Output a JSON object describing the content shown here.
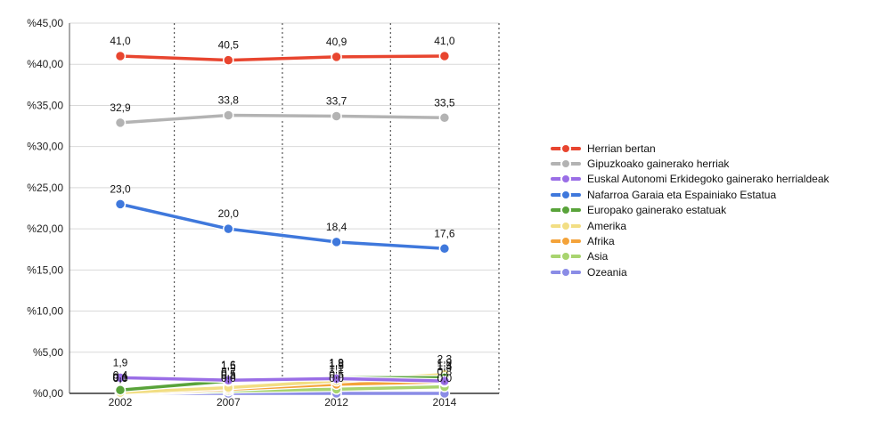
{
  "chart_data": {
    "type": "line",
    "x": [
      "2002",
      "2007",
      "2012",
      "2014"
    ],
    "yticks": [
      "%0,00",
      "%5,00",
      "%10,00",
      "%15,00",
      "%20,00",
      "%25,00",
      "%30,00",
      "%35,00",
      "%40,00",
      "%45,00"
    ],
    "ylim": [
      0,
      45
    ],
    "grid": true,
    "legend_position": "right",
    "series": [
      {
        "name": "Herrian bertan",
        "color": "#e8452f",
        "values": [
          41.0,
          40.5,
          40.9,
          41.0
        ],
        "labels": [
          "41,0",
          "40,5",
          "40,9",
          "41,0"
        ]
      },
      {
        "name": "Gipuzkoako gainerako herriak",
        "color": "#b3b3b3",
        "values": [
          32.9,
          33.8,
          33.7,
          33.5
        ],
        "labels": [
          "32,9",
          "33,8",
          "33,7",
          "33,5"
        ]
      },
      {
        "name": "Euskal Autonomi Erkidegoko gainerako herrialdeak",
        "color": "#9a6ee6",
        "values": [
          1.9,
          1.6,
          1.8,
          1.5
        ],
        "labels": [
          "1,9",
          "1,6",
          "1,8",
          "1,5"
        ]
      },
      {
        "name": "Nafarroa Garaia eta Espainiako Estatua",
        "color": "#3f78dc",
        "values": [
          23.0,
          20.0,
          18.4,
          17.6
        ],
        "labels": [
          "23,0",
          "20,0",
          "18,4",
          "17,6"
        ]
      },
      {
        "name": "Europako gainerako estatuak",
        "color": "#59a33a",
        "values": [
          0.4,
          1.5,
          1.9,
          1.9
        ],
        "labels": [
          "0,4",
          "1,5",
          "1,9",
          "1,9"
        ]
      },
      {
        "name": "Amerika",
        "color": "#f2de84",
        "values": [
          0.1,
          0.7,
          1.5,
          2.3
        ],
        "labels": [
          "0,1",
          "0,7",
          "1,5",
          "2,3"
        ]
      },
      {
        "name": "Afrika",
        "color": "#f4a33a",
        "values": [
          0.0,
          0.5,
          1.1,
          1.4
        ],
        "labels": [
          "0,0",
          "0,5",
          "1,1",
          "1,4"
        ]
      },
      {
        "name": "Asia",
        "color": "#a8d46f",
        "values": [
          0.0,
          0.3,
          0.5,
          0.8
        ],
        "labels": [
          "0,0",
          "0,3",
          "0,5",
          "0,8"
        ]
      },
      {
        "name": "Ozeania",
        "color": "#8a8ce6",
        "values": [
          0.0,
          0.0,
          0.0,
          0.0
        ],
        "labels": [
          "0,0",
          "0,0",
          "0,0",
          "0,0"
        ]
      }
    ]
  }
}
